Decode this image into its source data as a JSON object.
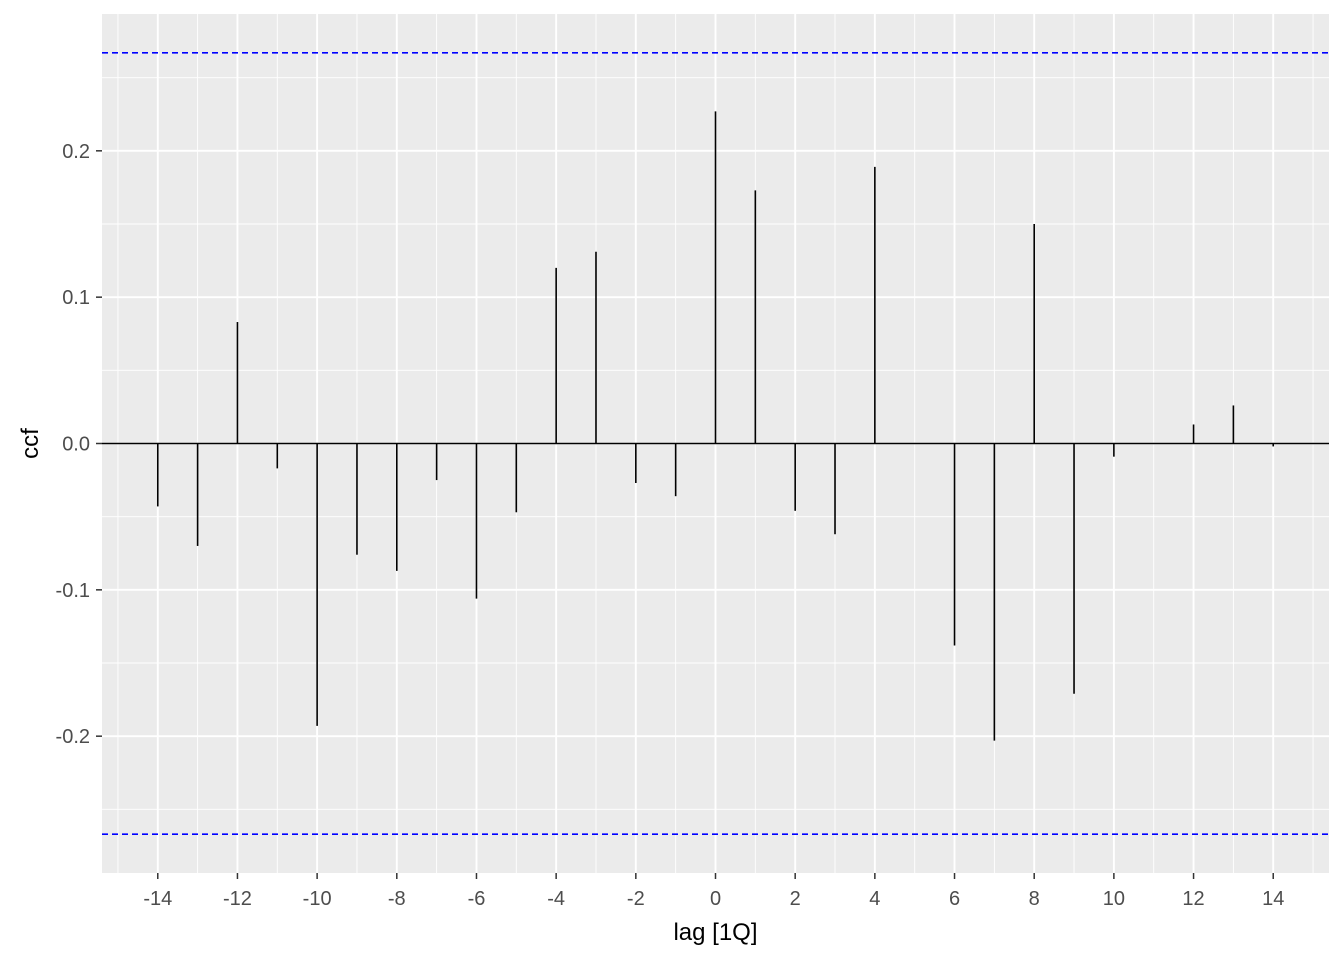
{
  "chart_data": {
    "type": "bar",
    "xlabel": "lag [1Q]",
    "ylabel": "ccf",
    "x": [
      -14,
      -13,
      -12,
      -11,
      -10,
      -9,
      -8,
      -7,
      -6,
      -5,
      -4,
      -3,
      -2,
      -1,
      0,
      1,
      2,
      3,
      4,
      5,
      6,
      7,
      8,
      9,
      10,
      11,
      12,
      13,
      14
    ],
    "values": [
      -0.043,
      -0.07,
      0.083,
      -0.017,
      -0.193,
      -0.076,
      -0.087,
      -0.025,
      -0.106,
      -0.047,
      0.12,
      0.131,
      -0.027,
      -0.036,
      0.227,
      0.173,
      -0.046,
      -0.062,
      0.189,
      0.0,
      -0.138,
      -0.203,
      0.15,
      -0.171,
      -0.009,
      0.0,
      0.013,
      0.026,
      -0.002
    ],
    "xlim": [
      -15.4,
      15.4
    ],
    "ylim": [
      -0.2935,
      0.2935
    ],
    "x_ticks": [
      -14,
      -12,
      -10,
      -8,
      -6,
      -4,
      -2,
      0,
      2,
      4,
      6,
      8,
      10,
      12,
      14
    ],
    "x_tick_labels": [
      "-14",
      "-12",
      "-10",
      "-8",
      "-6",
      "-4",
      "-2",
      "0",
      "2",
      "4",
      "6",
      "8",
      "10",
      "12",
      "14"
    ],
    "y_ticks": [
      -0.2,
      -0.1,
      0.0,
      0.1,
      0.2
    ],
    "y_tick_labels": [
      "-0.2",
      "-0.1",
      "0.0",
      "0.1",
      "0.2"
    ],
    "confidence_bounds": [
      -0.267,
      0.267
    ],
    "grid": true,
    "colors": {
      "panel": "#EBEBEB",
      "grid_major": "#FFFFFF",
      "spike": "#000000",
      "zero_line": "#000000",
      "bound": "#0000FF"
    }
  }
}
